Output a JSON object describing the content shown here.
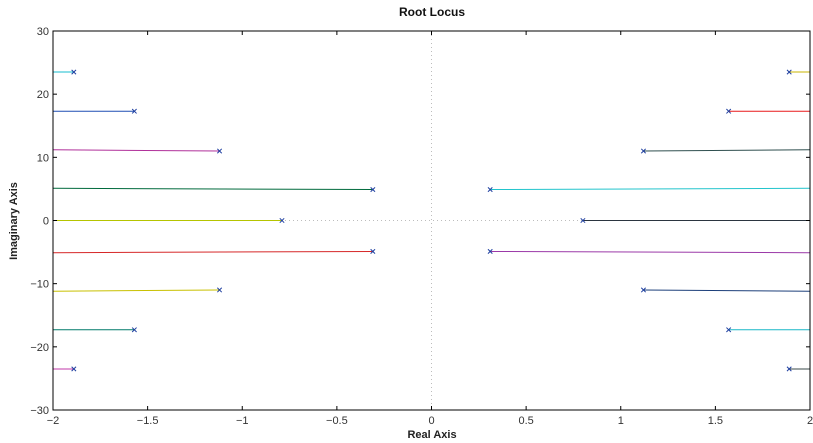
{
  "chart_data": {
    "type": "line",
    "title": "Root Locus",
    "xlabel": "Real Axis",
    "ylabel": "Imaginary Axis",
    "xlim": [
      -2,
      2
    ],
    "ylim": [
      -30,
      30
    ],
    "xticks": [
      -2,
      -1.5,
      -1,
      -0.5,
      0,
      0.5,
      1,
      1.5,
      2
    ],
    "xtick_labels": [
      "−2",
      "−1.5",
      "−1",
      "−0.5",
      "0",
      "0.5",
      "1",
      "1.5",
      "2"
    ],
    "yticks": [
      -30,
      -20,
      -10,
      0,
      10,
      20,
      30
    ],
    "ytick_labels": [
      "−30",
      "−20",
      "−10",
      "0",
      "10",
      "20",
      "30"
    ],
    "grid": "dotted-origin-lines",
    "pole_marker": "x",
    "pole_color": "#1f3fa0",
    "series": [
      {
        "pole": [
          -1.89,
          23.5
        ],
        "end": [
          -2.0,
          23.5
        ],
        "color": "#17becf"
      },
      {
        "pole": [
          -1.57,
          17.3
        ],
        "end": [
          -2.0,
          17.3
        ],
        "color": "#1f4fb4"
      },
      {
        "pole": [
          -1.12,
          11.0
        ],
        "end": [
          -2.0,
          11.2
        ],
        "color": "#b0309a"
      },
      {
        "pole": [
          -0.31,
          4.9
        ],
        "end": [
          -2.0,
          5.1
        ],
        "color": "#006a3c"
      },
      {
        "pole": [
          -0.79,
          0.0
        ],
        "end": [
          -2.0,
          0.0
        ],
        "color": "#b5c400"
      },
      {
        "pole": [
          -0.31,
          -4.9
        ],
        "end": [
          -2.0,
          -5.1
        ],
        "color": "#d62728"
      },
      {
        "pole": [
          -1.12,
          -11.0
        ],
        "end": [
          -2.0,
          -11.2
        ],
        "color": "#c8c000"
      },
      {
        "pole": [
          -1.57,
          -17.3
        ],
        "end": [
          -2.0,
          -17.3
        ],
        "color": "#007a6a"
      },
      {
        "pole": [
          -1.89,
          -23.5
        ],
        "end": [
          -2.0,
          -23.5
        ],
        "color": "#c03aa8"
      },
      {
        "pole": [
          1.89,
          23.5
        ],
        "end": [
          2.0,
          23.5
        ],
        "color": "#c8b400"
      },
      {
        "pole": [
          1.57,
          17.3
        ],
        "end": [
          2.0,
          17.3
        ],
        "color": "#e8181a"
      },
      {
        "pole": [
          1.12,
          11.0
        ],
        "end": [
          2.0,
          11.2
        ],
        "color": "#2f4f4f"
      },
      {
        "pole": [
          0.31,
          4.9
        ],
        "end": [
          2.0,
          5.1
        ],
        "color": "#22c4cc"
      },
      {
        "pole": [
          0.8,
          0.0
        ],
        "end": [
          2.0,
          0.0
        ],
        "color": "#2b3540"
      },
      {
        "pole": [
          0.31,
          -4.9
        ],
        "end": [
          2.0,
          -5.1
        ],
        "color": "#9b39a8"
      },
      {
        "pole": [
          1.12,
          -11.0
        ],
        "end": [
          2.0,
          -11.2
        ],
        "color": "#1c3f7a"
      },
      {
        "pole": [
          1.57,
          -17.3
        ],
        "end": [
          2.0,
          -17.3
        ],
        "color": "#19b7c7"
      },
      {
        "pole": [
          1.89,
          -23.5
        ],
        "end": [
          2.0,
          -23.5
        ],
        "color": "#3a4a4a"
      }
    ]
  }
}
